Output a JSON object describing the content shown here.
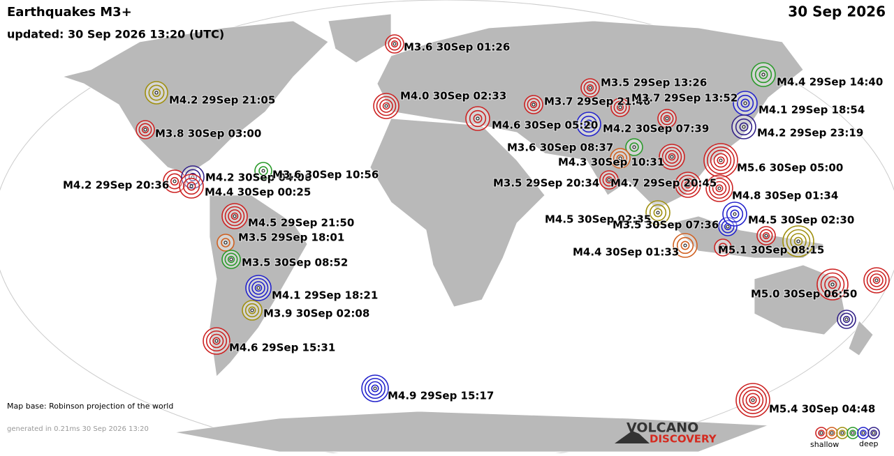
{
  "header": {
    "title": "Earthquakes M3+",
    "updated": "updated: 30 Sep 2026 13:20 (UTC)",
    "date": "30 Sep 2026"
  },
  "footer": {
    "map_base": "Map base: Robinson projection of the world",
    "generated": "generated in 0.21ms 30 Sep 2026 13:20",
    "logo_top": "VOLCANO",
    "logo_bottom": "DISCOVERY",
    "legend_shallow": "shallow",
    "legend_deep": "deep"
  },
  "legend_colors": [
    "#cc2222",
    "#d06020",
    "#a09010",
    "#2a9a2a",
    "#2222cc",
    "#332288"
  ],
  "quakes": [
    {
      "label": "M3.6 30Sep 01:26",
      "color": "#cc2222"
    },
    {
      "label": "M4.2 29Sep 21:05",
      "color": "#a09010"
    },
    {
      "label": "M3.8 30Sep 03:00",
      "color": "#cc2222"
    },
    {
      "label": "M4.0 30Sep 02:33",
      "color": "#cc2222"
    },
    {
      "label": "M4.6 30Sep 05:20",
      "color": "#cc2222"
    },
    {
      "label": "M3.7 29Sep 21:46",
      "color": "#cc2222"
    },
    {
      "label": "M3.5 29Sep 13:26",
      "color": "#cc2222"
    },
    {
      "label": "M3.7 29Sep 13:52",
      "color": "#cc2222"
    },
    {
      "label": "M4.2 30Sep 07:39",
      "color": "#2222cc"
    },
    {
      "label": "M3.6 30Sep 08:37",
      "color": "#2a9a2a"
    },
    {
      "label": "M4.3 30Sep 10:31",
      "color": "#d06020"
    },
    {
      "label": "M4.4 29Sep 14:40",
      "color": "#2a9a2a"
    },
    {
      "label": "M4.1 29Sep 18:54",
      "color": "#2222cc"
    },
    {
      "label": "M4.2 29Sep 23:19",
      "color": "#332288"
    },
    {
      "label": "M5.6 30Sep 05:00",
      "color": "#cc2222"
    },
    {
      "label": "M3.5 29Sep 20:34",
      "color": "#cc2222"
    },
    {
      "label": "M4.7 29Sep 20:45",
      "color": "#cc2222"
    },
    {
      "label": "M4.8 30Sep 01:34",
      "color": "#cc2222"
    },
    {
      "label": "M4.5 30Sep 02:35",
      "color": "#a09010"
    },
    {
      "label": "M3.5 30Sep 07:36",
      "color": "#2222cc"
    },
    {
      "label": "M4.5 30Sep 02:30",
      "color": "#2222cc"
    },
    {
      "label": "M4.4 30Sep 01:33",
      "color": "#d06020"
    },
    {
      "label": "M5.1 30Sep 08:15",
      "color": "#a09010"
    },
    {
      "label": "M5.0 30Sep 06:50",
      "color": "#cc2222"
    },
    {
      "label": "M5.4 30Sep 04:48",
      "color": "#cc2222"
    },
    {
      "label": "M4.2 29Sep 20:36",
      "color": "#cc2222"
    },
    {
      "label": "M4.2 30Sep 04:06",
      "color": "#332288"
    },
    {
      "label": "M3.6 30Sep 10:56",
      "color": "#2a9a2a"
    },
    {
      "label": "M4.4 30Sep 00:25",
      "color": "#cc2222"
    },
    {
      "label": "M4.5 29Sep 21:50",
      "color": "#cc2222"
    },
    {
      "label": "M3.5 29Sep 18:01",
      "color": "#d06020"
    },
    {
      "label": "M3.5 30Sep 08:52",
      "color": "#2a9a2a"
    },
    {
      "label": "M4.1 29Sep 18:21",
      "color": "#2222cc"
    },
    {
      "label": "M3.9 30Sep 02:08",
      "color": "#a09010"
    },
    {
      "label": "M4.6 29Sep 15:31",
      "color": "#cc2222"
    },
    {
      "label": "M4.9 29Sep 15:17",
      "color": "#2222cc"
    }
  ]
}
